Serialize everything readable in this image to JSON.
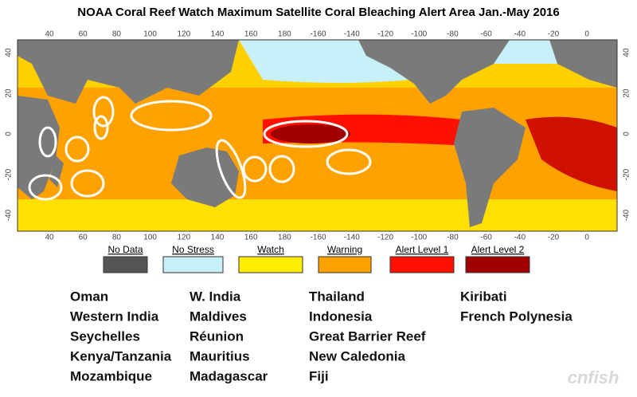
{
  "title": "NOAA Coral Reef Watch Maximum Satellite Coral Bleaching Alert Area Jan.-May 2016",
  "map": {
    "lon_ticks": [
      40,
      60,
      80,
      100,
      120,
      140,
      160,
      180,
      -160,
      -140,
      -120,
      -100,
      -80,
      -60,
      -40,
      -20,
      0
    ],
    "lat_ticks": [
      40,
      20,
      0,
      -20,
      -40
    ]
  },
  "legend": [
    {
      "label": "No Data",
      "color": "#555555"
    },
    {
      "label": "No Stress",
      "color": "#c8f0f8"
    },
    {
      "label": "Watch",
      "color": "#ffee00"
    },
    {
      "label": "Warning",
      "color": "#ffa200"
    },
    {
      "label": "Alert Level 1",
      "color": "#ff1000"
    },
    {
      "label": "Alert Level 2",
      "color": "#a00000"
    }
  ],
  "places": [
    [
      "Oman",
      "Western India",
      "Seychelles",
      "Kenya/Tanzania",
      "Mozambique"
    ],
    [
      "W. India",
      "Maldives",
      "Réunion",
      "Mauritius",
      "Madagascar"
    ],
    [
      "Thailand",
      "Indonesia",
      "Great Barrier Reef",
      "New Caledonia",
      "Fiji"
    ],
    [
      "Kiribati",
      "French Polynesia"
    ]
  ],
  "watermark": "cnfish"
}
